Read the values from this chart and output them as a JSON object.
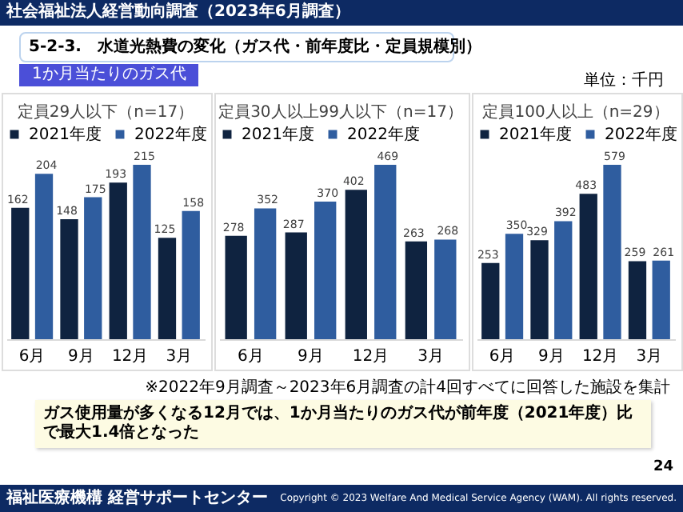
{
  "chart_data": [
    {
      "type": "bar",
      "title": "定員29人以下（n=17）",
      "categories": [
        "6月",
        "9月",
        "12月",
        "3月"
      ],
      "legend": "top",
      "data_labels": true,
      "series": [
        {
          "name": "2021年度",
          "color": "#0f2340",
          "values": [
            162,
            148,
            193,
            125
          ]
        },
        {
          "name": "2022年度",
          "color": "#2f5d9f",
          "values": [
            204,
            175,
            215,
            158
          ]
        }
      ],
      "annotations": [
        "社会福祉法人経営動向調査（2023年6月調査）",
        "5-2-3.　水道光熱費の変化（ガス代・前年度比・定員規模別）",
        "1か月当たりのガス代",
        "単位：千円",
        "※2022年9月調査～2023年6月調査の計4回すべてに回答した施設を集計",
        "ガス使用量が多くなる12月では、1か月当たりのガス代が前年度（2021年度）比で最大1.4倍となった",
        "24",
        "福祉医療機構 経営サポートセンター",
        "Copyright © 2023 Welfare And Medical Service Agency (WAM). All rights reserved."
      ]
    },
    {
      "type": "bar",
      "title": "定員30人以上99人以下（n=17）",
      "categories": [
        "6月",
        "9月",
        "12月",
        "3月"
      ],
      "legend": "top",
      "data_labels": true,
      "series": [
        {
          "name": "2021年度",
          "color": "#0f2340",
          "values": [
            278,
            287,
            402,
            263
          ]
        },
        {
          "name": "2022年度",
          "color": "#2f5d9f",
          "values": [
            352,
            370,
            469,
            268
          ]
        }
      ]
    },
    {
      "type": "bar",
      "title": "定員100人以上（n=29）",
      "categories": [
        "6月",
        "9月",
        "12月",
        "3月"
      ],
      "legend": "top",
      "data_labels": true,
      "series": [
        {
          "name": "2021年度",
          "color": "#0f2340",
          "values": [
            253,
            329,
            483,
            259
          ]
        },
        {
          "name": "2022年度",
          "color": "#2f5d9f",
          "values": [
            350,
            392,
            579,
            261
          ]
        }
      ]
    }
  ]
}
